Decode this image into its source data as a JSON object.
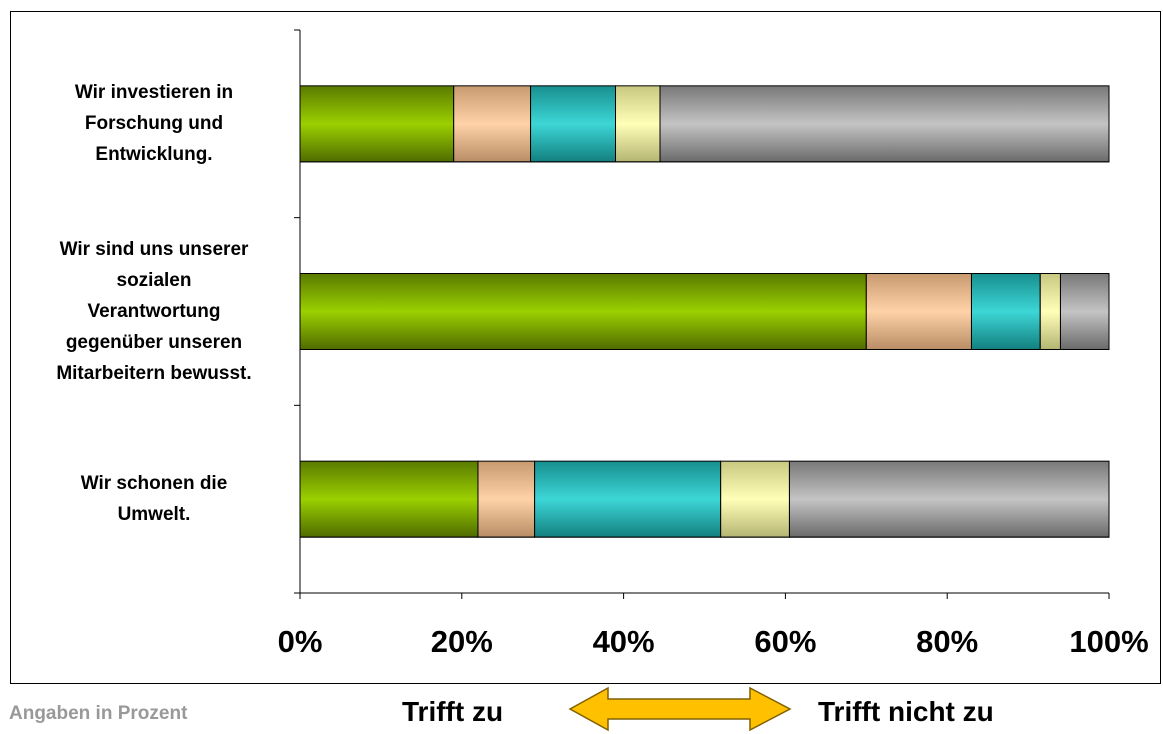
{
  "colors": {
    "trifft_zu": "#8fbf00",
    "series2": "#f5c69a",
    "series3": "#2fc9c9",
    "series4": "#f5f5a0",
    "trifft_nicht_zu": "#a8a8a8",
    "arrow": "#ffc000"
  },
  "chart_data": {
    "type": "bar",
    "orientation": "horizontal",
    "stacked": "percent",
    "categories": [
      "Wir investieren in\nForschung und\nEntwicklung.",
      "Wir sind uns unserer\nsozialen\nVerantwortung\ngegenüber unseren\nMitarbeitern bewusst.",
      "Wir schonen die\nUmwelt."
    ],
    "series": [
      {
        "values": [
          19,
          70,
          22
        ]
      },
      {
        "values": [
          9.5,
          13,
          7
        ]
      },
      {
        "values": [
          10.5,
          8.5,
          23
        ]
      },
      {
        "values": [
          5.5,
          2.5,
          8.5
        ]
      },
      {
        "values": [
          55.5,
          6,
          39.5
        ]
      }
    ],
    "xlim": [
      0,
      100
    ],
    "xticks": [
      "0%",
      "20%",
      "40%",
      "60%",
      "80%",
      "100%"
    ],
    "legend": "none",
    "grid": false
  },
  "footer": {
    "note": "Angaben in Prozent",
    "left_label": "Trifft zu",
    "right_label": "Trifft nicht zu"
  }
}
